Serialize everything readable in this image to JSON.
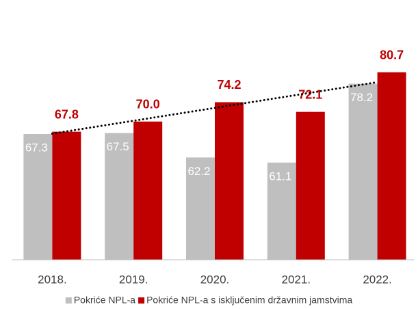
{
  "chart_data": {
    "type": "bar",
    "categories": [
      "2018.",
      "2019.",
      "2020.",
      "2021.",
      "2022."
    ],
    "series": [
      {
        "name": "Pokriće NPL-a",
        "color": "#bfbfbf",
        "values": [
          67.3,
          67.5,
          62.2,
          61.1,
          78.2
        ]
      },
      {
        "name": "Pokriće NPL-a s isključenim državnim jamstvima",
        "color": "#c00000",
        "values": [
          67.8,
          70.0,
          74.2,
          72.1,
          80.7
        ],
        "value_labels": [
          "67.8",
          "70.0",
          "74.2",
          "72.1",
          "80.7"
        ]
      }
    ],
    "ylim": [
      40,
      90
    ],
    "trendline": {
      "series": 1,
      "kind": "linear",
      "color": "#000000"
    },
    "legend": "bottom"
  }
}
